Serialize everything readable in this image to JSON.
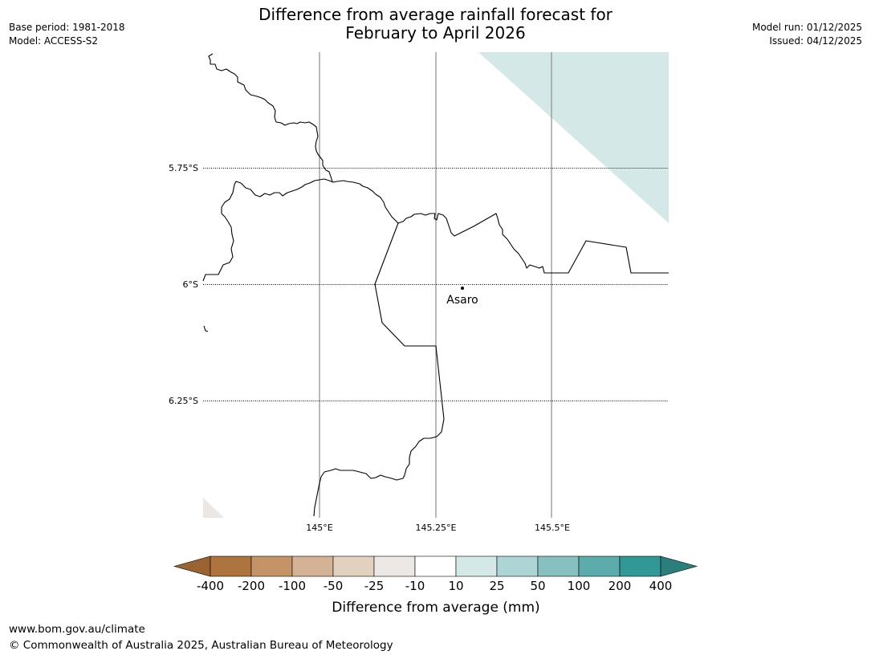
{
  "meta": {
    "base_period": "Base period: 1981-2018",
    "model": "Model: ACCESS-S2",
    "model_run": "Model run: 01/12/2025",
    "issued": "Issued: 04/12/2025"
  },
  "title": {
    "line1": "Difference from average rainfall forecast for",
    "line2": "February to April 2026"
  },
  "map": {
    "lat_labels": [
      "5.75°S",
      "6°S",
      "6.25°S"
    ],
    "lon_labels": [
      "145°E",
      "145.25°E",
      "145.5°E"
    ],
    "place": "Asaro",
    "colors": {
      "light_teal": "#d4e8e7",
      "light_brown": "#ece7e3"
    }
  },
  "colorbar": {
    "title": "Difference from average (mm)",
    "tick_labels": [
      "-400",
      "-200",
      "-100",
      "-50",
      "-25",
      "-10",
      "10",
      "25",
      "50",
      "100",
      "200",
      "400"
    ],
    "colors": [
      "#9a6331",
      "#ad743d",
      "#c49467",
      "#d4b394",
      "#e3d1c0",
      "#ece8e5",
      "#ffffff",
      "#d4e8e8",
      "#aed5d6",
      "#86c1bf",
      "#5cacab",
      "#319896",
      "#2a7e7c"
    ]
  },
  "footer": {
    "url": "www.bom.gov.au/climate",
    "copyright": "© Commonwealth of Australia 2025, Australian Bureau of Meteorology"
  }
}
